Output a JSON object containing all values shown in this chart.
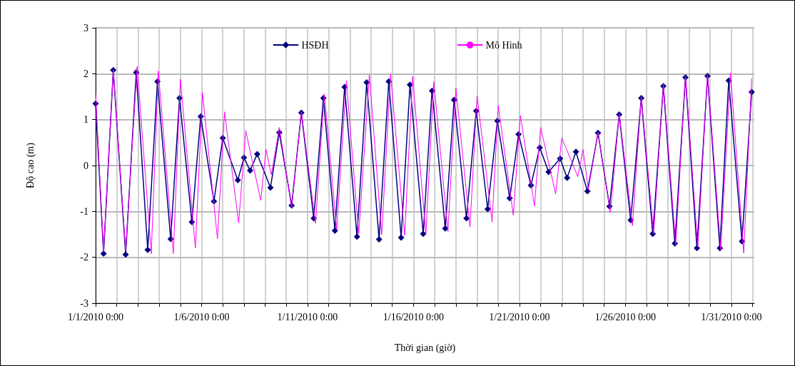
{
  "chart_data": {
    "type": "line",
    "xlabel": "Thời gian (giờ)",
    "ylabel": "Độ cao (m)",
    "xlim": [
      "2010-01-01T00:00",
      "2010-02-01T02:00"
    ],
    "xticks": [
      {
        "value": "2010-01-01T00:00",
        "label": "1/1/2010 0:00"
      },
      {
        "value": "2010-01-02T00:00",
        "label": null
      },
      {
        "value": "2010-01-03T00:00",
        "label": null
      },
      {
        "value": "2010-01-04T00:00",
        "label": null
      },
      {
        "value": "2010-01-05T00:00",
        "label": null
      },
      {
        "value": "2010-01-06T00:00",
        "label": "1/6/2010 0:00"
      },
      {
        "value": "2010-01-07T00:00",
        "label": null
      },
      {
        "value": "2010-01-08T00:00",
        "label": null
      },
      {
        "value": "2010-01-09T00:00",
        "label": null
      },
      {
        "value": "2010-01-10T00:00",
        "label": null
      },
      {
        "value": "2010-01-11T00:00",
        "label": "1/11/2010 0:00"
      },
      {
        "value": "2010-01-12T00:00",
        "label": null
      },
      {
        "value": "2010-01-13T00:00",
        "label": null
      },
      {
        "value": "2010-01-14T00:00",
        "label": null
      },
      {
        "value": "2010-01-15T00:00",
        "label": null
      },
      {
        "value": "2010-01-16T00:00",
        "label": "1/16/2010 0:00"
      },
      {
        "value": "2010-01-17T00:00",
        "label": null
      },
      {
        "value": "2010-01-18T00:00",
        "label": null
      },
      {
        "value": "2010-01-19T00:00",
        "label": null
      },
      {
        "value": "2010-01-20T00:00",
        "label": null
      },
      {
        "value": "2010-01-21T00:00",
        "label": "1/21/2010 0:00"
      },
      {
        "value": "2010-01-22T00:00",
        "label": null
      },
      {
        "value": "2010-01-23T00:00",
        "label": null
      },
      {
        "value": "2010-01-24T00:00",
        "label": null
      },
      {
        "value": "2010-01-25T00:00",
        "label": null
      },
      {
        "value": "2010-01-26T00:00",
        "label": "1/26/2010 0:00"
      },
      {
        "value": "2010-01-27T00:00",
        "label": null
      },
      {
        "value": "2010-01-28T00:00",
        "label": null
      },
      {
        "value": "2010-01-29T00:00",
        "label": null
      },
      {
        "value": "2010-01-30T00:00",
        "label": null
      },
      {
        "value": "2010-01-31T00:00",
        "label": "1/31/2010 0:00"
      },
      {
        "value": "2010-02-01T00:00",
        "label": null
      }
    ],
    "ylim": [
      -3,
      3
    ],
    "yticks": [
      -3,
      -2,
      -1,
      0,
      1,
      2,
      3
    ],
    "grid": true,
    "legend": "top",
    "series": [
      {
        "name": "HSĐH",
        "color": "#000080",
        "marker": "diamond",
        "x": [
          "2010-01-01T00:00",
          "2010-01-01T09:00",
          "2010-01-01T20:00",
          "2010-01-02T10:00",
          "2010-01-02T22:00",
          "2010-01-03T11:00",
          "2010-01-03T22:00",
          "2010-01-04T13:00",
          "2010-01-04T23:00",
          "2010-01-05T13:00",
          "2010-01-05T23:00",
          "2010-01-06T14:00",
          "2010-01-07T00:00",
          "2010-01-07T17:00",
          "2010-01-08T00:00",
          "2010-01-08T07:00",
          "2010-01-08T15:00",
          "2010-01-09T06:00",
          "2010-01-09T16:00",
          "2010-01-10T06:00",
          "2010-01-10T17:00",
          "2010-01-11T07:00",
          "2010-01-11T18:00",
          "2010-01-12T07:00",
          "2010-01-12T18:00",
          "2010-01-13T08:00",
          "2010-01-13T19:00",
          "2010-01-14T09:00",
          "2010-01-14T20:00",
          "2010-01-15T10:00",
          "2010-01-15T20:00",
          "2010-01-16T11:00",
          "2010-01-16T21:00",
          "2010-01-17T12:00",
          "2010-01-17T22:00",
          "2010-01-18T12:00",
          "2010-01-18T23:00",
          "2010-01-19T12:00",
          "2010-01-19T23:00",
          "2010-01-20T13:00",
          "2010-01-20T23:00",
          "2010-01-21T13:00",
          "2010-01-21T23:00",
          "2010-01-22T09:00",
          "2010-01-22T22:00",
          "2010-01-23T06:00",
          "2010-01-23T16:00",
          "2010-01-24T05:00",
          "2010-01-24T17:00",
          "2010-01-25T06:00",
          "2010-01-25T17:00",
          "2010-01-26T06:00",
          "2010-01-26T18:00",
          "2010-01-27T07:00",
          "2010-01-27T19:00",
          "2010-01-28T08:00",
          "2010-01-28T20:00",
          "2010-01-29T09:00",
          "2010-01-29T21:00",
          "2010-01-30T11:00",
          "2010-01-30T21:00",
          "2010-01-31T12:00",
          "2010-01-31T23:00"
        ],
        "values": [
          1.35,
          -1.92,
          2.08,
          -1.94,
          2.03,
          -1.84,
          1.83,
          -1.6,
          1.47,
          -1.23,
          1.07,
          -0.78,
          0.6,
          -0.32,
          0.17,
          -0.11,
          0.25,
          -0.48,
          0.72,
          -0.87,
          1.15,
          -1.15,
          1.47,
          -1.42,
          1.71,
          -1.55,
          1.81,
          -1.61,
          1.83,
          -1.57,
          1.76,
          -1.49,
          1.63,
          -1.37,
          1.43,
          -1.15,
          1.19,
          -0.95,
          0.97,
          -0.71,
          0.68,
          -0.43,
          0.39,
          -0.14,
          0.15,
          -0.27,
          0.3,
          -0.56,
          0.71,
          -0.89,
          1.11,
          -1.19,
          1.47,
          -1.49,
          1.73,
          -1.7,
          1.92,
          -1.8,
          1.95,
          -1.8,
          1.85,
          -1.65,
          1.6
        ]
      },
      {
        "name": "Mô Hình",
        "color": "#ff00ff",
        "marker": "none",
        "x": [
          "2010-01-01T00:00",
          "2010-01-01T09:00",
          "2010-01-01T20:00",
          "2010-01-02T10:00",
          "2010-01-02T23:00",
          "2010-01-03T15:00",
          "2010-01-03T23:00",
          "2010-01-04T16:00",
          "2010-01-05T00:00",
          "2010-01-05T17:00",
          "2010-01-06T01:00",
          "2010-01-06T18:00",
          "2010-01-07T02:00",
          "2010-01-07T18:00",
          "2010-01-08T02:00",
          "2010-01-08T19:00",
          "2010-01-09T01:00",
          "2010-01-09T07:00",
          "2010-01-09T16:00",
          "2010-01-10T06:00",
          "2010-01-10T17:00",
          "2010-01-11T09:00",
          "2010-01-11T19:00",
          "2010-01-12T09:00",
          "2010-01-12T20:00",
          "2010-01-13T10:00",
          "2010-01-13T22:00",
          "2010-01-14T12:00",
          "2010-01-14T22:00",
          "2010-01-15T14:00",
          "2010-01-15T23:00",
          "2010-01-16T14:00",
          "2010-01-16T23:00",
          "2010-01-17T15:00",
          "2010-01-18T00:00",
          "2010-01-18T16:00",
          "2010-01-19T00:00",
          "2010-01-19T17:00",
          "2010-01-20T00:00",
          "2010-01-20T17:00",
          "2010-01-21T01:00",
          "2010-01-21T17:00",
          "2010-01-22T00:00",
          "2010-01-22T17:00",
          "2010-01-23T00:00",
          "2010-01-23T18:00",
          "2010-01-24T00:00",
          "2010-01-24T06:00",
          "2010-01-24T17:00",
          "2010-01-25T07:00",
          "2010-01-25T17:00",
          "2010-01-26T08:00",
          "2010-01-26T18:00",
          "2010-01-27T08:00",
          "2010-01-27T19:00",
          "2010-01-28T09:00",
          "2010-01-28T20:00",
          "2010-01-29T10:00",
          "2010-01-29T21:00",
          "2010-01-30T12:00",
          "2010-01-30T23:00",
          "2010-01-31T14:00",
          "2010-01-31T23:00"
        ],
        "values": [
          1.57,
          -1.88,
          2.09,
          -1.85,
          2.16,
          -1.92,
          2.06,
          -1.92,
          1.88,
          -1.8,
          1.59,
          -1.6,
          1.17,
          -1.25,
          0.76,
          -0.76,
          0.35,
          -0.2,
          0.83,
          -0.92,
          1.17,
          -1.26,
          1.56,
          -1.39,
          1.84,
          -1.49,
          1.98,
          -1.51,
          1.99,
          -1.52,
          1.94,
          -1.5,
          1.83,
          -1.44,
          1.68,
          -1.34,
          1.52,
          -1.23,
          1.31,
          -1.08,
          1.09,
          -0.88,
          0.83,
          -0.62,
          0.6,
          -0.24,
          0.35,
          -0.52,
          0.72,
          -1.02,
          1.13,
          -1.31,
          1.5,
          -1.49,
          1.77,
          -1.72,
          1.96,
          -1.78,
          1.99,
          -1.83,
          2.02,
          -1.91,
          1.89
        ]
      }
    ]
  }
}
